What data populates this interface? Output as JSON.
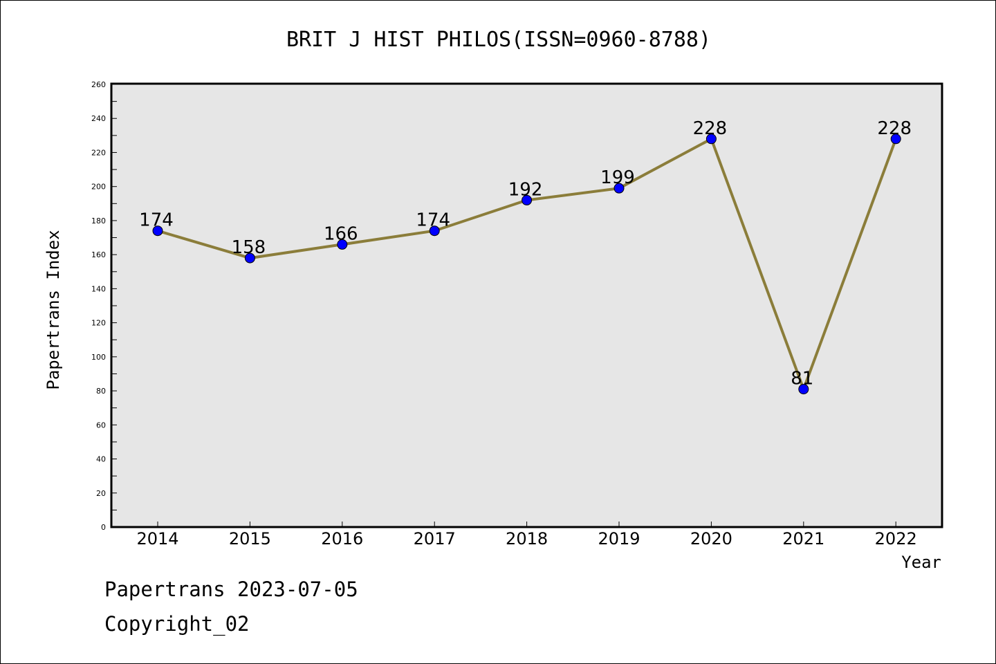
{
  "chart_data": {
    "type": "line",
    "title": "BRIT J HIST PHILOS(ISSN=0960-8788)",
    "xlabel": "Year",
    "ylabel": "Papertrans Index",
    "categories": [
      "2014",
      "2015",
      "2016",
      "2017",
      "2018",
      "2019",
      "2020",
      "2021",
      "2022"
    ],
    "values": [
      174,
      158,
      166,
      174,
      192,
      199,
      228,
      81,
      228
    ],
    "data_labels": [
      "174",
      "158",
      "166",
      "174",
      "192",
      "199",
      "228",
      "81",
      "228"
    ],
    "ylim": [
      0,
      260
    ],
    "yticks": [
      0,
      20,
      40,
      60,
      80,
      100,
      120,
      140,
      160,
      180,
      200,
      220,
      240,
      260
    ],
    "grid": false,
    "colors": {
      "line": "#8B7D3A",
      "marker": "#0000FF",
      "plot_background": "#E6E6E6"
    }
  },
  "footer": {
    "line1": "Papertrans 2023-07-05",
    "line2": "Copyright_02"
  }
}
